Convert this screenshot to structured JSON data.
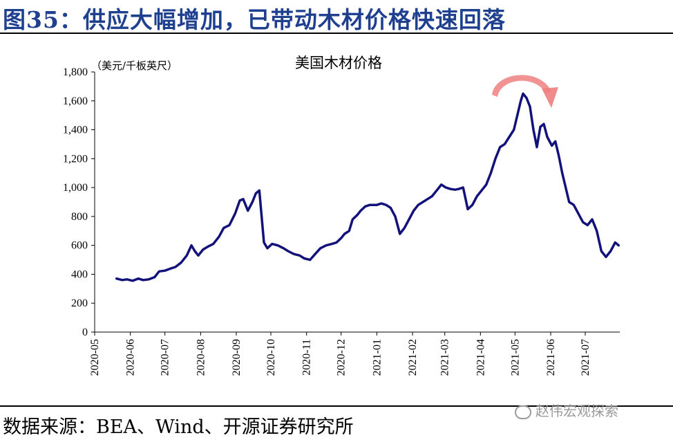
{
  "figure": {
    "title": "图35：供应大幅增加，已带动木材价格快速回落",
    "source": "数据来源：BEA、Wind、开源证券研究所",
    "watermark": "赵伟宏观探索"
  },
  "chart_data": {
    "type": "line",
    "title": "美国木材价格",
    "ylabel": "（美元/千板英尺）",
    "xlabel": "",
    "ylim": [
      0,
      1800
    ],
    "yticks": [
      0,
      200,
      400,
      600,
      800,
      1000,
      1200,
      1400,
      1600,
      1800
    ],
    "ytick_labels": [
      "0",
      "200",
      "400",
      "600",
      "800",
      "1,000",
      "1,200",
      "1,400",
      "1,600",
      "1,800"
    ],
    "xlim": [
      "2020-05-01",
      "2021-07-31"
    ],
    "xticks": [
      "2020-05-01",
      "2020-06-01",
      "2020-07-01",
      "2020-08-01",
      "2020-09-01",
      "2020-10-01",
      "2020-11-01",
      "2020-12-01",
      "2021-01-01",
      "2021-02-01",
      "2021-03-01",
      "2021-04-01",
      "2021-05-01",
      "2021-06-01",
      "2021-07-01"
    ],
    "xtick_labels": [
      "2020-05",
      "2020-06",
      "2020-07",
      "2020-08",
      "2020-09",
      "2020-10",
      "2020-11",
      "2020-12",
      "2021-01",
      "2021-02",
      "2021-03",
      "2021-04",
      "2021-05",
      "2021-06",
      "2021-07"
    ],
    "grid": false,
    "line_color": "#12127a",
    "arrow_color": "#f08080",
    "annotation": "curved arrow over peak indicating rise then fall",
    "series": [
      {
        "x": [
          "2020-05-20",
          "2020-05-25",
          "2020-05-29",
          "2020-06-03",
          "2020-06-08",
          "2020-06-12",
          "2020-06-17",
          "2020-06-22",
          "2020-06-26",
          "2020-07-01",
          "2020-07-06",
          "2020-07-10",
          "2020-07-15",
          "2020-07-20",
          "2020-07-24",
          "2020-07-27",
          "2020-07-30",
          "2020-08-03",
          "2020-08-07",
          "2020-08-12",
          "2020-08-17",
          "2020-08-21",
          "2020-08-26",
          "2020-08-31",
          "2020-09-04",
          "2020-09-07",
          "2020-09-11",
          "2020-09-15",
          "2020-09-18",
          "2020-09-21",
          "2020-09-25",
          "2020-09-28",
          "2020-10-02",
          "2020-10-07",
          "2020-10-12",
          "2020-10-16",
          "2020-10-21",
          "2020-10-26",
          "2020-10-30",
          "2020-11-04",
          "2020-11-09",
          "2020-11-13",
          "2020-11-18",
          "2020-11-23",
          "2020-11-27",
          "2020-12-01",
          "2020-12-04",
          "2020-12-08",
          "2020-12-11",
          "2020-12-15",
          "2020-12-18",
          "2020-12-22",
          "2020-12-26",
          "2021-01-01",
          "2021-01-05",
          "2021-01-09",
          "2021-01-13",
          "2021-01-17",
          "2021-01-21",
          "2021-01-25",
          "2021-01-29",
          "2021-02-02",
          "2021-02-06",
          "2021-02-10",
          "2021-02-14",
          "2021-02-18",
          "2021-02-22",
          "2021-02-26",
          "2021-03-02",
          "2021-03-06",
          "2021-03-10",
          "2021-03-13",
          "2021-03-17",
          "2021-03-21",
          "2021-03-25",
          "2021-03-29",
          "2021-04-02",
          "2021-04-06",
          "2021-04-10",
          "2021-04-14",
          "2021-04-18",
          "2021-04-22",
          "2021-04-26",
          "2021-04-30",
          "2021-05-03",
          "2021-05-06",
          "2021-05-08",
          "2021-05-11",
          "2021-05-14",
          "2021-05-17",
          "2021-05-20",
          "2021-05-23",
          "2021-05-26",
          "2021-05-29",
          "2021-06-02",
          "2021-06-05",
          "2021-06-08",
          "2021-06-11",
          "2021-06-14",
          "2021-06-17",
          "2021-06-21",
          "2021-06-25",
          "2021-06-29",
          "2021-07-03",
          "2021-07-07",
          "2021-07-11",
          "2021-07-15",
          "2021-07-19",
          "2021-07-23",
          "2021-07-27",
          "2021-07-30"
        ],
        "values": [
          370,
          360,
          365,
          355,
          370,
          360,
          365,
          380,
          420,
          425,
          440,
          450,
          480,
          530,
          600,
          560,
          530,
          570,
          590,
          610,
          660,
          720,
          740,
          820,
          910,
          920,
          840,
          900,
          960,
          980,
          620,
          580,
          610,
          600,
          580,
          560,
          540,
          530,
          510,
          500,
          545,
          580,
          600,
          610,
          620,
          650,
          680,
          700,
          780,
          810,
          840,
          870,
          880,
          880,
          890,
          880,
          860,
          800,
          680,
          720,
          780,
          840,
          880,
          900,
          920,
          940,
          980,
          1020,
          1000,
          990,
          985,
          990,
          1000,
          850,
          880,
          940,
          980,
          1020,
          1100,
          1200,
          1280,
          1300,
          1350,
          1400,
          1500,
          1600,
          1650,
          1620,
          1560,
          1400,
          1280,
          1420,
          1440,
          1350,
          1290,
          1320,
          1220,
          1100,
          1000,
          900,
          880,
          820,
          760,
          740,
          780,
          700,
          560,
          520,
          560,
          620,
          600
        ]
      }
    ]
  }
}
